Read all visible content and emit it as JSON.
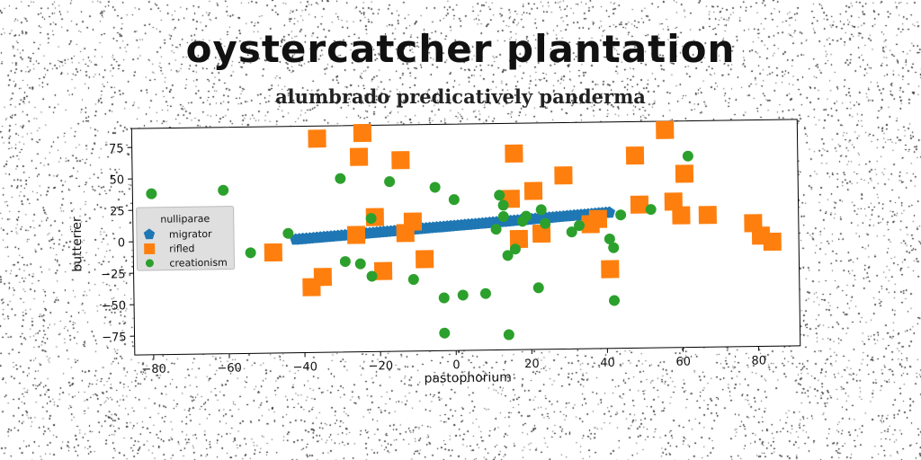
{
  "chart_data": {
    "type": "scatter",
    "title": "oystercatcher plantation",
    "subtitle": "alumbrado predicatively panderma",
    "xlabel": "pastophorium",
    "ylabel": "butterier",
    "xlim": [
      -85,
      91
    ],
    "ylim": [
      -90,
      90
    ],
    "xticks": [
      -80,
      -60,
      -40,
      -20,
      0,
      20,
      40,
      60,
      80
    ],
    "yticks": [
      75,
      50,
      25,
      0,
      -25,
      -50,
      -75
    ],
    "grid": false,
    "legend": {
      "title": "nulliparae",
      "placement": "center-left"
    },
    "series": [
      {
        "name": "migrator",
        "color": "#1f77b4",
        "marker": "pentagon",
        "start": [
          -42,
          0
        ],
        "end": [
          41,
          18
        ]
      },
      {
        "name": "rifled",
        "color": "#ff7f0e",
        "marker": "square",
        "points": [
          [
            -36,
            80
          ],
          [
            -24,
            84
          ],
          [
            -25,
            65
          ],
          [
            -14,
            62
          ],
          [
            -21,
            17
          ],
          [
            -26,
            3
          ],
          [
            -11,
            13
          ],
          [
            -13,
            4
          ],
          [
            -48,
            -10
          ],
          [
            -38,
            -38
          ],
          [
            -35,
            -30
          ],
          [
            -19,
            -26
          ],
          [
            -8,
            -17
          ],
          [
            15,
            30
          ],
          [
            16,
            66
          ],
          [
            21,
            36
          ],
          [
            29,
            48
          ],
          [
            17,
            -2
          ],
          [
            23,
            2
          ],
          [
            36,
            9
          ],
          [
            38,
            13
          ],
          [
            41,
            -27
          ],
          [
            48,
            63
          ],
          [
            49,
            24
          ],
          [
            56,
            83
          ],
          [
            58,
            26
          ],
          [
            60,
            15
          ],
          [
            61,
            48
          ],
          [
            67,
            15
          ],
          [
            79,
            8
          ],
          [
            81,
            -2
          ],
          [
            84,
            -7
          ]
        ]
      },
      {
        "name": "creationism",
        "color": "#2ca02c",
        "marker": "circle",
        "points": [
          [
            -80,
            38
          ],
          [
            -61,
            40
          ],
          [
            -54,
            -10
          ],
          [
            -44,
            5
          ],
          [
            -30,
            48
          ],
          [
            -29,
            -18
          ],
          [
            -25,
            -20
          ],
          [
            -22,
            16
          ],
          [
            -22,
            -30
          ],
          [
            -17,
            45
          ],
          [
            -11,
            -33
          ],
          [
            -5,
            40
          ],
          [
            -3,
            -48
          ],
          [
            -3,
            -76
          ],
          [
            0,
            30
          ],
          [
            2,
            -46
          ],
          [
            8,
            -45
          ],
          [
            11,
            6
          ],
          [
            12,
            33
          ],
          [
            13,
            16
          ],
          [
            13,
            25
          ],
          [
            14,
            -78
          ],
          [
            14,
            -15
          ],
          [
            16,
            -10
          ],
          [
            18,
            12
          ],
          [
            19,
            16
          ],
          [
            22,
            -41
          ],
          [
            23,
            21
          ],
          [
            24,
            10
          ],
          [
            31,
            3
          ],
          [
            33,
            8
          ],
          [
            41,
            -3
          ],
          [
            42,
            -10
          ],
          [
            42,
            -52
          ],
          [
            44,
            16
          ],
          [
            52,
            20
          ],
          [
            62,
            62
          ]
        ]
      }
    ]
  }
}
